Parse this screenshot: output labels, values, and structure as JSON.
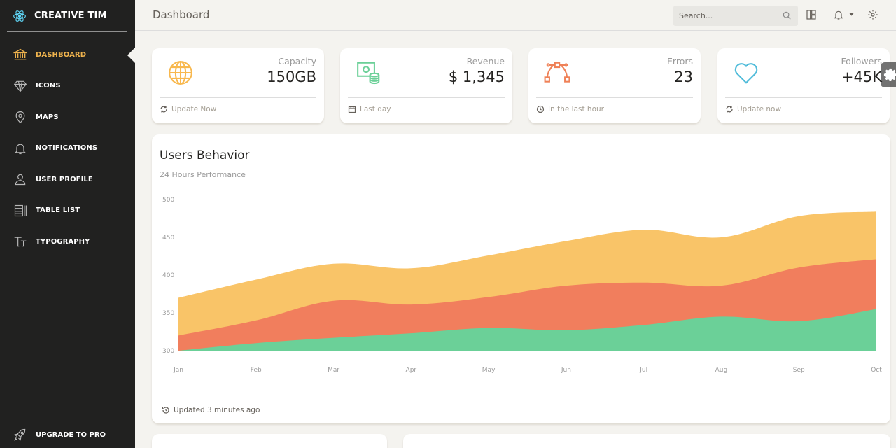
{
  "brand": {
    "name": "CREATIVE TIM",
    "icon": "react-atom-icon"
  },
  "sidebar": {
    "items": [
      {
        "label": "DASHBOARD",
        "icon": "bank-icon",
        "active": true
      },
      {
        "label": "ICONS",
        "icon": "diamond-icon",
        "active": false
      },
      {
        "label": "MAPS",
        "icon": "map-pin-icon",
        "active": false
      },
      {
        "label": "NOTIFICATIONS",
        "icon": "bell-icon",
        "active": false
      },
      {
        "label": "USER PROFILE",
        "icon": "user-icon",
        "active": false
      },
      {
        "label": "TABLE LIST",
        "icon": "table-list-icon",
        "active": false
      },
      {
        "label": "TYPOGRAPHY",
        "icon": "typography-icon",
        "active": false
      }
    ],
    "upgrade": {
      "label": "UPGRADE TO PRO",
      "icon": "rocket-icon"
    }
  },
  "topbar": {
    "title": "Dashboard",
    "search": {
      "placeholder": "Search...",
      "value": ""
    }
  },
  "stats": [
    {
      "label": "Capacity",
      "value": "150GB",
      "footer": "Update Now",
      "icon": "globe-icon",
      "footer_icon": "refresh-icon",
      "color": "#f8b84e"
    },
    {
      "label": "Revenue",
      "value": "$ 1,345",
      "footer": "Last day",
      "icon": "money-coins-icon",
      "footer_icon": "calendar-icon",
      "color": "#6bd098"
    },
    {
      "label": "Errors",
      "value": "23",
      "footer": "In the last hour",
      "icon": "vector-icon",
      "footer_icon": "clock-icon",
      "color": "#ef8157"
    },
    {
      "label": "Followers",
      "value": "+45K",
      "footer": "Update now",
      "icon": "heart-icon",
      "footer_icon": "refresh-icon",
      "color": "#51bcda"
    }
  ],
  "chart": {
    "title": "Users Behavior",
    "subtitle": "24 Hours Performance",
    "footer": "Updated 3 minutes ago"
  },
  "chart_data": {
    "type": "area",
    "categories": [
      "Jan",
      "Feb",
      "Mar",
      "Apr",
      "May",
      "Jun",
      "Jul",
      "Aug",
      "Sep",
      "Oct"
    ],
    "ylim": [
      300,
      500
    ],
    "yticks": [
      300,
      350,
      400,
      450,
      500
    ],
    "grid": false,
    "series": [
      {
        "values": [
          370,
          394,
          415,
          409,
          426,
          445,
          460,
          450,
          478,
          484
        ],
        "color": "#f9c468"
      },
      {
        "values": [
          320,
          340,
          366,
          361,
          371,
          386,
          390,
          386,
          410,
          421
        ],
        "color": "#f17e5d"
      },
      {
        "values": [
          300,
          310,
          317,
          323,
          330,
          327,
          334,
          345,
          339,
          355
        ],
        "color": "#6bd098"
      }
    ]
  }
}
